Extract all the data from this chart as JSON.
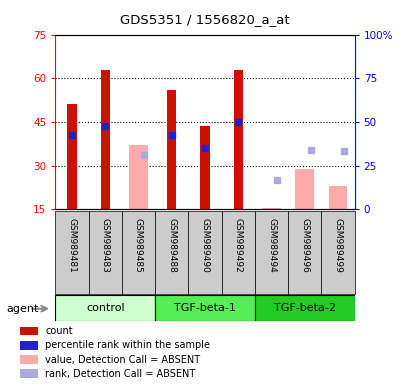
{
  "title": "GDS5351 / 1556820_a_at",
  "samples": [
    "GSM989481",
    "GSM989483",
    "GSM989485",
    "GSM989488",
    "GSM989490",
    "GSM989492",
    "GSM989494",
    "GSM989496",
    "GSM989499"
  ],
  "red_bar_values": [
    51.0,
    63.0,
    null,
    56.0,
    43.5,
    63.0,
    null,
    null,
    null
  ],
  "blue_sq_values": [
    40.5,
    43.5,
    null,
    40.5,
    36.0,
    45.0,
    null,
    null,
    null
  ],
  "pink_bar_values": [
    null,
    null,
    37.0,
    null,
    null,
    null,
    15.3,
    29.0,
    23.0
  ],
  "lightblue_sq_values": [
    null,
    null,
    33.5,
    null,
    null,
    null,
    25.0,
    35.5,
    35.0
  ],
  "left_ylim": [
    15,
    75
  ],
  "right_ylim": [
    0,
    100
  ],
  "left_yticks": [
    15,
    30,
    45,
    60,
    75
  ],
  "right_yticks": [
    0,
    25,
    50,
    75,
    100
  ],
  "right_yticklabels": [
    "0",
    "25",
    "50",
    "75",
    "100%"
  ],
  "red_color": "#cc1100",
  "blue_color": "#2222cc",
  "pink_color": "#ffaaaa",
  "lightblue_color": "#aaaadd",
  "background_color": "#ffffff",
  "sample_bg": "#cccccc",
  "group_colors": [
    "#ccffcc",
    "#55ee55",
    "#22cc22"
  ],
  "group_names": [
    "control",
    "TGF-beta-1",
    "TGF-beta-2"
  ],
  "group_ranges": [
    [
      0,
      2
    ],
    [
      3,
      5
    ],
    [
      6,
      8
    ]
  ],
  "legend_items": [
    {
      "color": "#cc1100",
      "label": "count"
    },
    {
      "color": "#2222cc",
      "label": "percentile rank within the sample"
    },
    {
      "color": "#ffaaaa",
      "label": "value, Detection Call = ABSENT"
    },
    {
      "color": "#aaaadd",
      "label": "rank, Detection Call = ABSENT"
    }
  ]
}
